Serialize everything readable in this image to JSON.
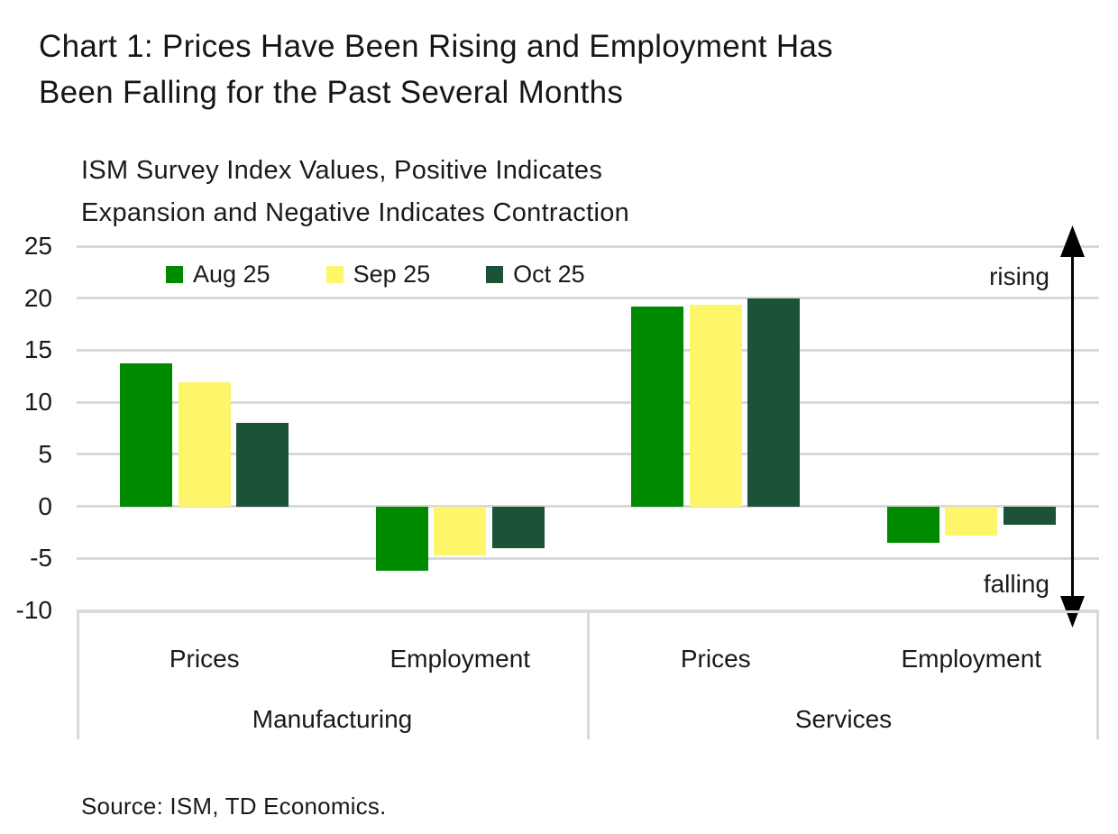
{
  "title": {
    "lines": [
      "Chart 1: Prices Have Been Rising and Employment Has",
      "Been Falling for the Past Several Months"
    ]
  },
  "subtitle": {
    "lines": [
      "ISM Survey Index Values, Positive Indicates",
      "Expansion and Negative Indicates Contraction"
    ]
  },
  "source_note": "Source: ISM, TD Economics.",
  "colors": {
    "aug_green": "#008A00",
    "sep_yellow": "#FDF56A",
    "oct_dark_green": "#1C5238",
    "gridline": "#D9D9D9",
    "axis_border": "#D9D9D9",
    "text": "#1A1A1A",
    "arrow": "#000000"
  },
  "chart_data": {
    "type": "bar",
    "title": "Chart 1: Prices Have Been Rising and Employment Has Been Falling for the Past Several Months",
    "subtitle": "ISM Survey Index Values, Positive Indicates Expansion and Negative Indicates Contraction",
    "ylim": [
      -10,
      25
    ],
    "yticks": [
      25,
      20,
      15,
      10,
      5,
      0,
      -5,
      -10
    ],
    "grid": true,
    "legend_position": "top-left-inside",
    "groups": [
      {
        "label": "Manufacturing",
        "categories": [
          "Prices",
          "Employment"
        ]
      },
      {
        "label": "Services",
        "categories": [
          "Prices",
          "Employment"
        ]
      }
    ],
    "series": [
      {
        "name": "Aug 25",
        "color": "#008A00",
        "values": [
          13.7,
          -6.2,
          19.2,
          -3.5
        ]
      },
      {
        "name": "Sep 25",
        "color": "#FDF56A",
        "values": [
          11.9,
          -4.7,
          19.4,
          -2.8
        ]
      },
      {
        "name": "Oct 25",
        "color": "#1C5238",
        "values": [
          8.0,
          -4.0,
          20.0,
          -1.8
        ]
      }
    ],
    "annotations": {
      "top_right": "rising",
      "bottom_right": "falling"
    }
  }
}
